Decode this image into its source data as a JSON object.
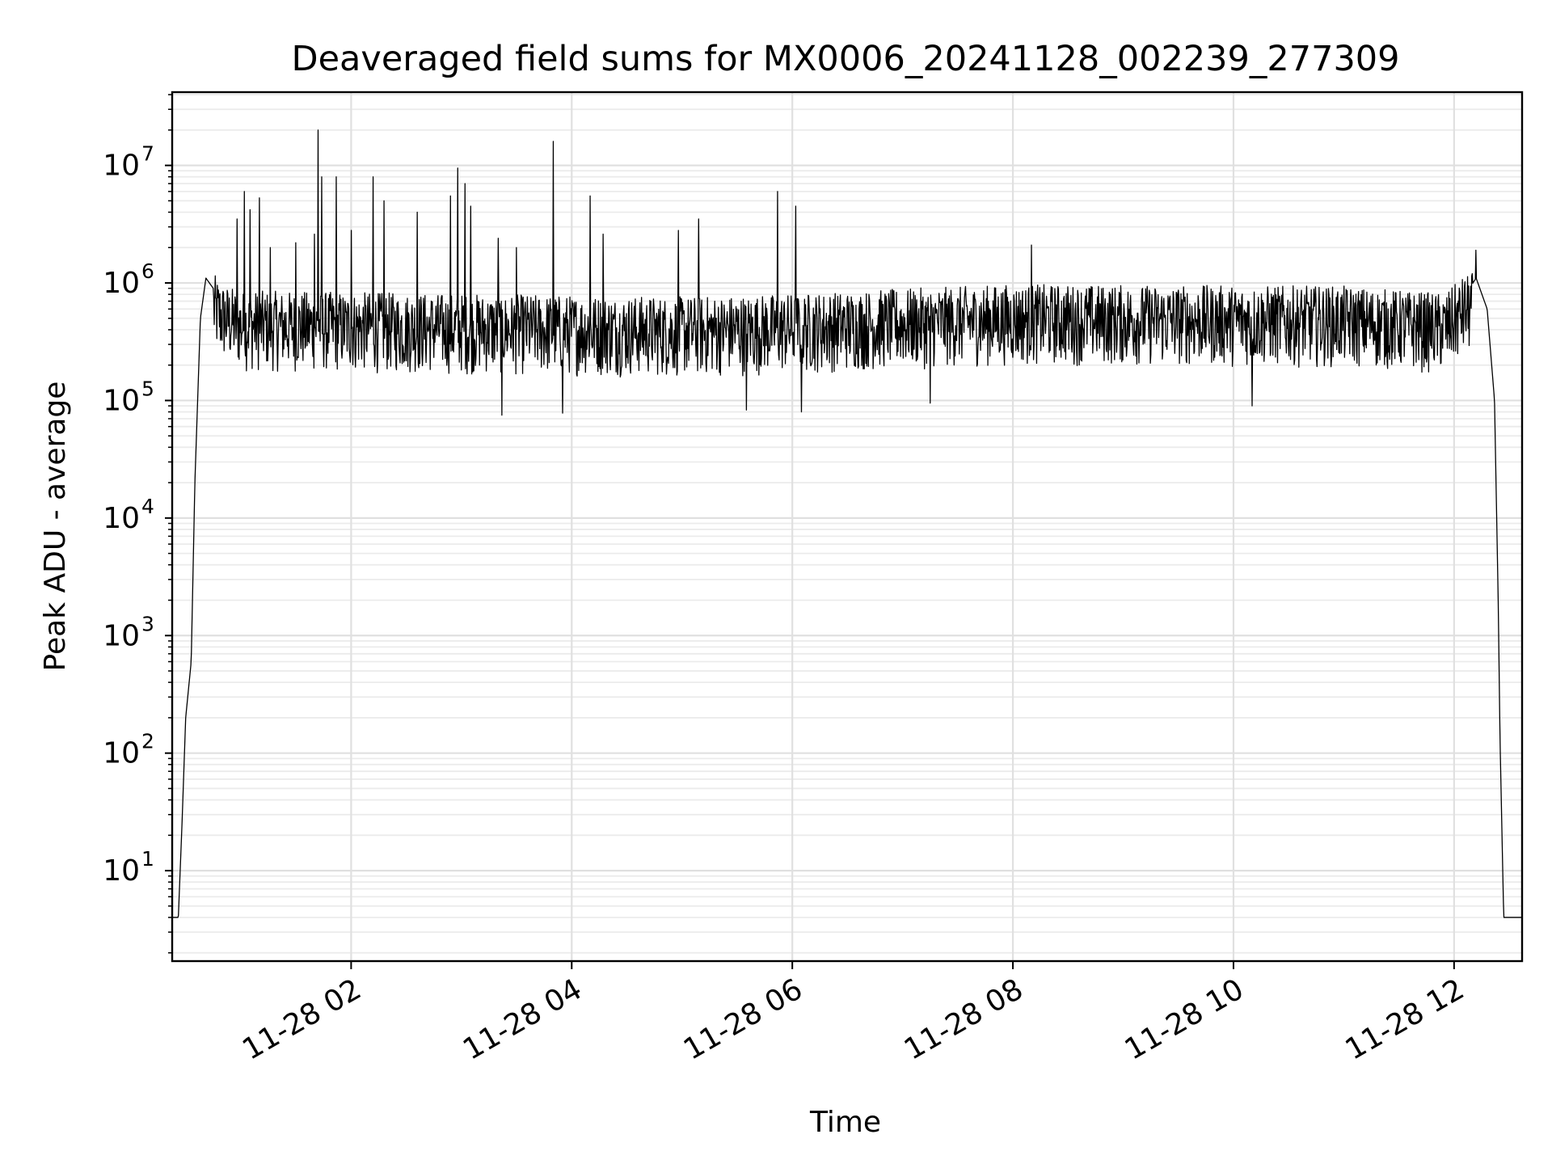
{
  "chart_data": {
    "type": "line",
    "title": "Deaveraged field sums for MX0006_20241128_002239_277309",
    "xlabel": "Time",
    "ylabel": "Peak ADU - average",
    "yscale": "log",
    "ylim": [
      1.7,
      42000000
    ],
    "xlim": [
      "2024-11-28 00:22:39",
      "2024-11-28 12:37:00"
    ],
    "grid": true,
    "grid_minor": true,
    "x_ticks": [
      {
        "t": "2024-11-28 02:00",
        "label": "11-28 02"
      },
      {
        "t": "2024-11-28 04:00",
        "label": "11-28 04"
      },
      {
        "t": "2024-11-28 06:00",
        "label": "11-28 06"
      },
      {
        "t": "2024-11-28 08:00",
        "label": "11-28 08"
      },
      {
        "t": "2024-11-28 10:00",
        "label": "11-28 10"
      },
      {
        "t": "2024-11-28 12:00",
        "label": "11-28 12"
      }
    ],
    "y_ticks": [
      {
        "value": 10,
        "base": "10",
        "exp": "1"
      },
      {
        "value": 100,
        "base": "10",
        "exp": "2"
      },
      {
        "value": 1000,
        "base": "10",
        "exp": "3"
      },
      {
        "value": 10000,
        "base": "10",
        "exp": "4"
      },
      {
        "value": 100000,
        "base": "10",
        "exp": "5"
      },
      {
        "value": 1000000,
        "base": "10",
        "exp": "6"
      },
      {
        "value": 10000000,
        "base": "10",
        "exp": "7"
      }
    ],
    "series": [
      {
        "color": "#000000",
        "points": [
          [
            "2024-11-28 00:22:39",
            4
          ],
          [
            "2024-11-28 00:26:00",
            4
          ],
          [
            "2024-11-28 00:28:00",
            25
          ],
          [
            "2024-11-28 00:30:00",
            200
          ],
          [
            "2024-11-28 00:33:00",
            600
          ],
          [
            "2024-11-28 00:35:00",
            20000
          ],
          [
            "2024-11-28 00:38:00",
            500000
          ],
          [
            "2024-11-28 00:41:00",
            1100000
          ],
          [
            "2024-11-28 00:45:00",
            900000
          ],
          [
            "2024-11-28 00:50:00",
            550000
          ],
          [
            "2024-11-28 00:55:00",
            420000
          ],
          [
            "2024-11-28 01:00:00",
            350000
          ],
          [
            "2024-11-28 05:00:00",
            250000
          ],
          [
            "2024-11-28 06:00:00",
            300000
          ],
          [
            "2024-11-28 08:00:00",
            500000
          ],
          [
            "2024-11-28 11:00:00",
            450000
          ],
          [
            "2024-11-28 11:55:00",
            300000
          ],
          [
            "2024-11-28 12:05:00",
            750000
          ],
          [
            "2024-11-28 12:12:00",
            1100000
          ],
          [
            "2024-11-28 12:18:00",
            600000
          ],
          [
            "2024-11-28 12:22:00",
            100000
          ],
          [
            "2024-11-28 12:24:00",
            2000
          ],
          [
            "2024-11-28 12:25:00",
            130
          ],
          [
            "2024-11-28 12:27:00",
            4
          ],
          [
            "2024-11-28 12:37:00",
            4
          ]
        ],
        "noisy_band": {
          "start": "2024-11-28 00:45:00",
          "end": "2024-11-28 12:10:00",
          "typical_low": 120000,
          "typical_high": 1400000
        },
        "spikes": [
          [
            "2024-11-28 00:58:00",
            3500000
          ],
          [
            "2024-11-28 01:02:00",
            6000000
          ],
          [
            "2024-11-28 01:05:00",
            4200000
          ],
          [
            "2024-11-28 01:10:00",
            5300000
          ],
          [
            "2024-11-28 01:16:00",
            2000000
          ],
          [
            "2024-11-28 01:30:00",
            2200000
          ],
          [
            "2024-11-28 01:40:00",
            2600000
          ],
          [
            "2024-11-28 01:42:00",
            20000000
          ],
          [
            "2024-11-28 01:44:00",
            8000000
          ],
          [
            "2024-11-28 01:52:00",
            8000000
          ],
          [
            "2024-11-28 02:00:00",
            2800000
          ],
          [
            "2024-11-28 02:12:00",
            8000000
          ],
          [
            "2024-11-28 02:18:00",
            5000000
          ],
          [
            "2024-11-28 02:36:00",
            4000000
          ],
          [
            "2024-11-28 02:54:00",
            5500000
          ],
          [
            "2024-11-28 02:58:00",
            9500000
          ],
          [
            "2024-11-28 03:02:00",
            7000000
          ],
          [
            "2024-11-28 03:05:00",
            4500000
          ],
          [
            "2024-11-28 03:20:00",
            2400000
          ],
          [
            "2024-11-28 03:30:00",
            2000000
          ],
          [
            "2024-11-28 03:50:00",
            16000000
          ],
          [
            "2024-11-28 04:10:00",
            5500000
          ],
          [
            "2024-11-28 04:17:00",
            2600000
          ],
          [
            "2024-11-28 04:58:00",
            2800000
          ],
          [
            "2024-11-28 05:09:00",
            3500000
          ],
          [
            "2024-11-28 05:52:00",
            6000000
          ],
          [
            "2024-11-28 06:02:00",
            4500000
          ],
          [
            "2024-11-28 08:10:00",
            2100000
          ],
          [
            "2024-11-28 12:12:00",
            1900000
          ]
        ],
        "dips": [
          [
            "2024-11-28 03:22:00",
            75000
          ],
          [
            "2024-11-28 03:55:00",
            78000
          ],
          [
            "2024-11-28 05:35:00",
            83000
          ],
          [
            "2024-11-28 06:05:00",
            80000
          ],
          [
            "2024-11-28 07:15:00",
            95000
          ],
          [
            "2024-11-28 10:10:00",
            90000
          ]
        ]
      }
    ]
  }
}
